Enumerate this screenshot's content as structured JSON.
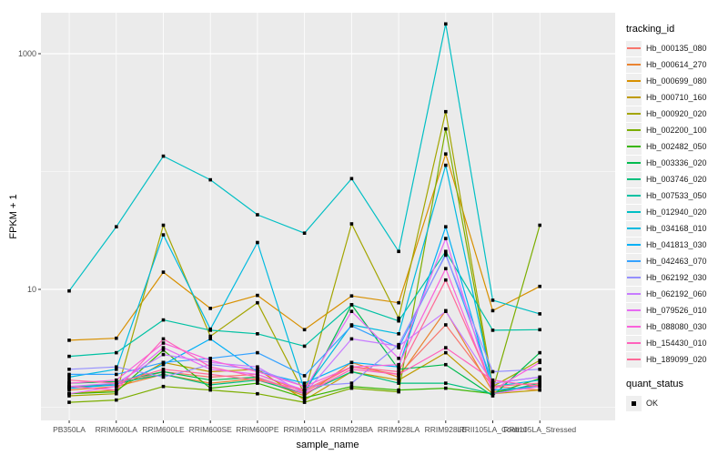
{
  "chart_data": {
    "type": "line",
    "title": "",
    "xlabel": "sample_name",
    "ylabel": "FPKM + 1",
    "y_scale": "log10",
    "ylim": [
      0.78,
      2200
    ],
    "y_ticks": [
      {
        "value": 10,
        "label": "10"
      },
      {
        "value": 1000,
        "label": "1000"
      }
    ],
    "y_gridlines_minor": [
      1,
      100
    ],
    "grid": "on",
    "panel_bg": "#EBEBEB",
    "gridline_color": "#FFFFFF",
    "point_shape": "filled-square",
    "point_color": "#000000",
    "categories": [
      "PB350LA",
      "RRIM600LA",
      "RRIM600LE",
      "RRIM600SE",
      "RRIM600PE",
      "RRIM901LA",
      "RRIM928BA",
      "RRIM928LA",
      "RRIM928LE",
      "RRII105LA_Control",
      "RRII105LA_Stressed"
    ],
    "legend": {
      "position": "right",
      "color_title": "tracking_id",
      "shape_title": "quant_status",
      "shape_entries": [
        {
          "label": "OK"
        }
      ]
    },
    "series": [
      {
        "tracking_id": "Hb_000135_080",
        "color": "#F8766D",
        "values": [
          1.5,
          1.55,
          2.0,
          1.8,
          1.9,
          1.35,
          2.2,
          1.9,
          5.0,
          1.5,
          1.4
        ]
      },
      {
        "tracking_id": "Hb_000614_270",
        "color": "#EA8331",
        "values": [
          1.4,
          1.5,
          1.9,
          1.6,
          1.75,
          1.25,
          2.4,
          1.8,
          6.6,
          1.35,
          1.55
        ]
      },
      {
        "tracking_id": "Hb_000699_080",
        "color": "#D89000",
        "values": [
          3.7,
          3.85,
          14,
          6.9,
          8.9,
          4.55,
          8.8,
          7.7,
          141,
          6.6,
          10.6
        ]
      },
      {
        "tracking_id": "Hb_000710_160",
        "color": "#C09B00",
        "values": [
          1.3,
          1.4,
          2.4,
          2.0,
          2.1,
          1.15,
          2.0,
          1.7,
          2.9,
          1.3,
          1.4
        ]
      },
      {
        "tracking_id": "Hb_000920_020",
        "color": "#A3A500",
        "values": [
          1.25,
          1.3,
          35,
          4.0,
          7.7,
          1.3,
          36,
          5.7,
          322,
          1.5,
          2.5
        ]
      },
      {
        "tracking_id": "Hb_002200_100",
        "color": "#7CAE00",
        "values": [
          1.1,
          1.15,
          1.5,
          1.4,
          1.3,
          1.1,
          1.45,
          1.35,
          230,
          1.4,
          35
        ]
      },
      {
        "tracking_id": "Hb_002482_050",
        "color": "#39B600",
        "values": [
          1.3,
          1.35,
          3.05,
          1.45,
          1.6,
          1.2,
          1.5,
          1.4,
          1.45,
          1.3,
          1.75
        ]
      },
      {
        "tracking_id": "Hb_003336_020",
        "color": "#00BB4E",
        "values": [
          1.6,
          1.65,
          2.0,
          1.7,
          1.8,
          1.3,
          7.4,
          2.1,
          2.3,
          1.25,
          2.9
        ]
      },
      {
        "tracking_id": "Hb_003746_020",
        "color": "#00BF7D",
        "values": [
          1.45,
          1.6,
          1.9,
          1.55,
          1.7,
          1.3,
          2.0,
          1.6,
          1.6,
          1.3,
          1.6
        ]
      },
      {
        "tracking_id": "Hb_007533_050",
        "color": "#00C1A3",
        "values": [
          2.7,
          2.9,
          5.5,
          4.5,
          4.2,
          3.3,
          7.4,
          5.4,
          21,
          4.5,
          4.55
        ]
      },
      {
        "tracking_id": "Hb_012940_020",
        "color": "#00BFC4",
        "values": [
          9.7,
          34,
          135,
          85,
          43,
          30,
          87,
          21,
          1790,
          8.1,
          6.2
        ]
      },
      {
        "tracking_id": "Hb_034168_010",
        "color": "#00BAE0",
        "values": [
          1.8,
          2.1,
          29,
          4.6,
          25,
          1.4,
          5.0,
          4.2,
          113,
          1.5,
          1.7
        ]
      },
      {
        "tracking_id": "Hb_041813_030",
        "color": "#00B0F6",
        "values": [
          1.45,
          1.55,
          2.3,
          3.8,
          2.0,
          1.6,
          2.4,
          2.2,
          34,
          1.4,
          1.5
        ]
      },
      {
        "tracking_id": "Hb_042463_070",
        "color": "#35A2FF",
        "values": [
          1.9,
          1.9,
          2.4,
          2.6,
          2.9,
          1.85,
          4.9,
          3.2,
          20,
          1.6,
          1.8
        ]
      },
      {
        "tracking_id": "Hb_062192_030",
        "color": "#9590FF",
        "values": [
          2.1,
          2.2,
          1.8,
          2.3,
          2.1,
          1.5,
          1.6,
          3.4,
          19.5,
          2.0,
          2.1
        ]
      },
      {
        "tracking_id": "Hb_062192_060",
        "color": "#C77CFF",
        "values": [
          1.5,
          1.6,
          2.8,
          2.4,
          2.2,
          1.3,
          3.8,
          3.3,
          6.5,
          1.6,
          1.8
        ]
      },
      {
        "tracking_id": "Hb_079526_010",
        "color": "#E76BF3",
        "values": [
          1.3,
          1.5,
          3.2,
          2.1,
          1.9,
          1.4,
          6.5,
          2.6,
          27,
          1.3,
          1.5
        ]
      },
      {
        "tracking_id": "Hb_088080_030",
        "color": "#FA62DB",
        "values": [
          1.6,
          1.7,
          3.5,
          2.5,
          2.0,
          1.5,
          2.2,
          2.3,
          15,
          1.4,
          2.4
        ]
      },
      {
        "tracking_id": "Hb_154430_010",
        "color": "#FF62BC",
        "values": [
          1.5,
          1.4,
          3.8,
          2.2,
          1.8,
          1.3,
          2.1,
          1.9,
          3.2,
          1.7,
          1.5
        ]
      },
      {
        "tracking_id": "Hb_189099_020",
        "color": "#FF6A98",
        "values": [
          1.7,
          1.6,
          2.1,
          1.9,
          1.7,
          1.4,
          2.2,
          2.0,
          12,
          1.5,
          1.6
        ]
      }
    ]
  }
}
